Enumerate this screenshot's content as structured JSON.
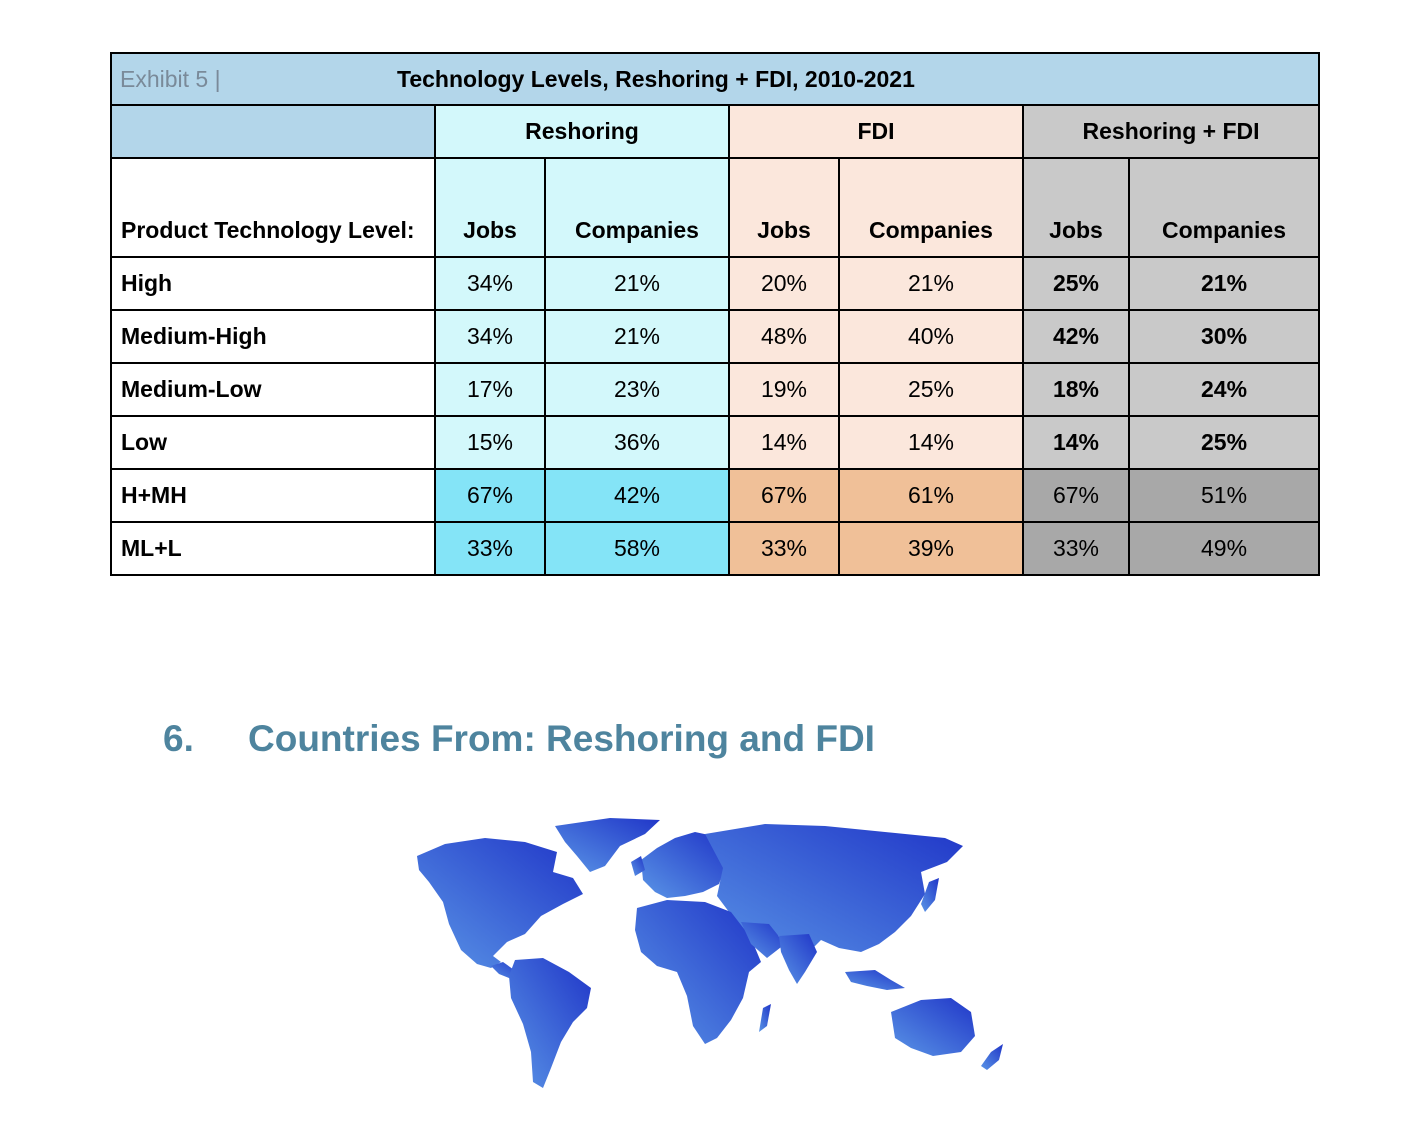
{
  "exhibit": {
    "label": "Exhibit 5 |",
    "title": "Technology Levels, Reshoring + FDI, 2010-2021",
    "groups": [
      "Reshoring",
      "FDI",
      "Reshoring + FDI"
    ],
    "row_header": "Product Technology Level:",
    "subheaders": [
      "Jobs",
      "Companies",
      "Jobs",
      "Companies",
      "Jobs",
      "Companies"
    ],
    "rows": [
      {
        "label": "High",
        "values": [
          "34%",
          "21%",
          "20%",
          "21%",
          "25%",
          "21%"
        ]
      },
      {
        "label": "Medium-High",
        "values": [
          "34%",
          "21%",
          "48%",
          "40%",
          "42%",
          "30%"
        ]
      },
      {
        "label": "Medium-Low",
        "values": [
          "17%",
          "23%",
          "19%",
          "25%",
          "18%",
          "24%"
        ]
      },
      {
        "label": "Low",
        "values": [
          "15%",
          "36%",
          "14%",
          "14%",
          "14%",
          "25%"
        ]
      },
      {
        "label": "H+MH",
        "values": [
          "67%",
          "42%",
          "67%",
          "61%",
          "67%",
          "51%"
        ]
      },
      {
        "label": "ML+L",
        "values": [
          "33%",
          "58%",
          "33%",
          "39%",
          "33%",
          "49%"
        ]
      }
    ]
  },
  "section": {
    "number": "6.",
    "title": "Countries From: Reshoring and FDI"
  },
  "colors": {
    "heading": "#4e849e",
    "map_light": "#5a95e6",
    "map_dark": "#2036c8"
  }
}
